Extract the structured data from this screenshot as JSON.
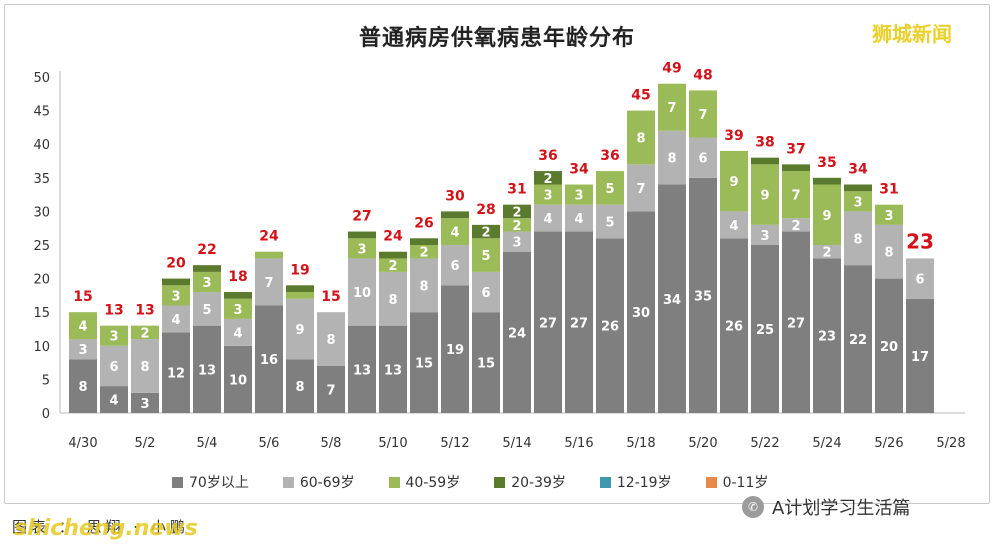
{
  "title": "普通病房供氧病患年龄分布",
  "watermark_top": "狮城新闻",
  "watermark_bottom": "shicheng.news",
  "footer_left": "图表 ： 思翔 · 小鹏",
  "wechat_account": "A计划学习生活篇",
  "wechat_icon": "wechat-icon",
  "chart_data": {
    "type": "bar",
    "stacked": true,
    "title": "普通病房供氧病患年龄分布",
    "ylim": [
      0,
      50
    ],
    "yticks": [
      0,
      5,
      10,
      15,
      20,
      25,
      30,
      35,
      40,
      45,
      50
    ],
    "xtick_labels": [
      "4/30",
      "5/2",
      "5/4",
      "5/6",
      "5/8",
      "5/10",
      "5/12",
      "5/14",
      "5/16",
      "5/18",
      "5/20",
      "5/22",
      "5/24",
      "5/26",
      "5/28"
    ],
    "categories": [
      "4/30",
      "5/1",
      "5/2",
      "5/3",
      "5/4",
      "5/5",
      "5/6",
      "5/7",
      "5/8",
      "5/9",
      "5/10",
      "5/11",
      "5/12",
      "5/13",
      "5/14",
      "5/15",
      "5/16",
      "5/17",
      "5/18",
      "5/19",
      "5/20",
      "5/21",
      "5/22",
      "5/23",
      "5/24",
      "5/25",
      "5/26",
      "5/27",
      "5/28"
    ],
    "series": [
      {
        "name": "70岁以上",
        "color": "#7f7f7f",
        "values": [
          8,
          4,
          3,
          12,
          13,
          10,
          16,
          8,
          7,
          13,
          13,
          15,
          19,
          15,
          24,
          27,
          27,
          26,
          30,
          34,
          35,
          26,
          25,
          27,
          23,
          22,
          20,
          17,
          null
        ]
      },
      {
        "name": "60-69岁",
        "color": "#b3b3b3",
        "values": [
          3,
          6,
          8,
          4,
          5,
          4,
          7,
          9,
          8,
          10,
          8,
          8,
          6,
          6,
          3,
          4,
          4,
          5,
          7,
          8,
          6,
          4,
          3,
          2,
          2,
          8,
          8,
          6,
          null
        ]
      },
      {
        "name": "40-59岁",
        "color": "#9bbb59",
        "values": [
          4,
          3,
          2,
          3,
          3,
          3,
          1,
          1,
          0,
          3,
          2,
          2,
          4,
          5,
          2,
          3,
          3,
          5,
          8,
          7,
          7,
          9,
          9,
          7,
          9,
          3,
          3,
          0,
          null
        ]
      },
      {
        "name": "20-39岁",
        "color": "#5a7a2e",
        "values": [
          0,
          0,
          0,
          1,
          1,
          1,
          0,
          1,
          0,
          1,
          1,
          1,
          1,
          2,
          2,
          2,
          0,
          0,
          0,
          0,
          0,
          0,
          1,
          1,
          1,
          1,
          0,
          0,
          null
        ]
      },
      {
        "name": "12-19岁",
        "color": "#3f97b0",
        "values": [
          0,
          0,
          0,
          0,
          0,
          0,
          0,
          0,
          0,
          0,
          0,
          0,
          0,
          0,
          0,
          0,
          0,
          0,
          0,
          0,
          0,
          0,
          0,
          0,
          0,
          0,
          0,
          0,
          null
        ]
      },
      {
        "name": "0-11岁",
        "color": "#e8894a",
        "values": [
          0,
          0,
          0,
          0,
          0,
          0,
          0,
          0,
          0,
          0,
          0,
          0,
          0,
          0,
          0,
          0,
          0,
          0,
          0,
          0,
          0,
          0,
          0,
          0,
          0,
          0,
          0,
          0,
          null
        ]
      }
    ],
    "totals": [
      15,
      13,
      13,
      20,
      22,
      18,
      24,
      19,
      15,
      27,
      24,
      26,
      30,
      28,
      31,
      36,
      34,
      36,
      45,
      49,
      48,
      39,
      38,
      37,
      35,
      34,
      31,
      23,
      null
    ],
    "latest_total_highlight": "23",
    "legend_placement": "bottom",
    "grid": false
  }
}
